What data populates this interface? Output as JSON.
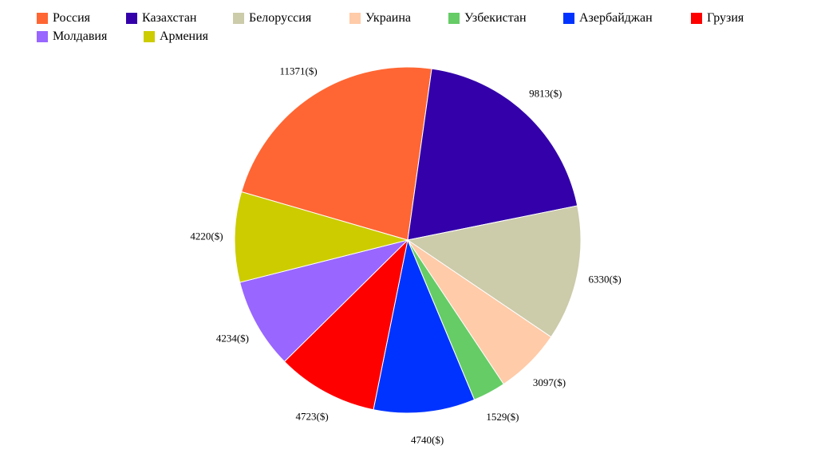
{
  "chart_data": {
    "type": "pie",
    "unit_suffix": "($)",
    "slices": [
      {
        "label": "Россия",
        "value": 11371,
        "color": "#ff6633"
      },
      {
        "label": "Казахстан",
        "value": 9813,
        "color": "#3300aa"
      },
      {
        "label": "Белоруссия",
        "value": 6330,
        "color": "#cccbaa"
      },
      {
        "label": "Украина",
        "value": 3097,
        "color": "#ffcba8"
      },
      {
        "label": "Узбекистан",
        "value": 1529,
        "color": "#66cc66"
      },
      {
        "label": "Азербайджан",
        "value": 4740,
        "color": "#0033ff"
      },
      {
        "label": "Грузия",
        "value": 4723,
        "color": "#ff0000"
      },
      {
        "label": "Молдавия",
        "value": 4234,
        "color": "#9966ff"
      },
      {
        "label": "Армения",
        "value": 4220,
        "color": "#cccc00"
      }
    ],
    "legend_position": "top"
  }
}
